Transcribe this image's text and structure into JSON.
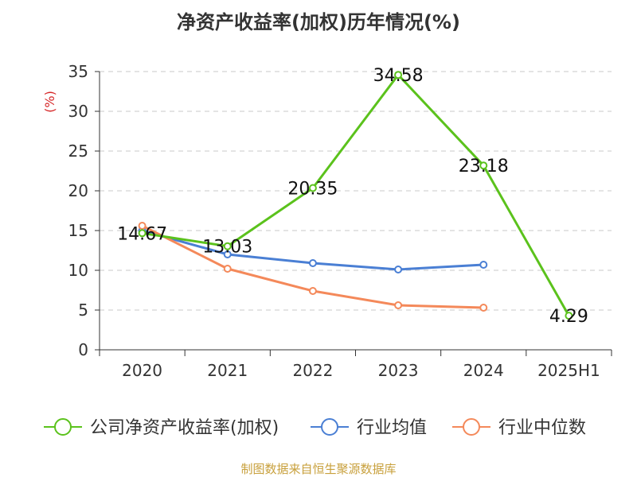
{
  "chart_data": {
    "type": "line",
    "title": "净资产收益率(加权)历年情况(%)",
    "ylabel": "(%)",
    "categories": [
      "2020",
      "2021",
      "2022",
      "2023",
      "2024",
      "2025H1"
    ],
    "ylim": [
      0,
      35
    ],
    "yticks": [
      0,
      5,
      10,
      15,
      20,
      25,
      30,
      35
    ],
    "grid": true,
    "legend_position": "bottom",
    "series": [
      {
        "name": "公司净资产收益率(加权)",
        "color": "#5bc21c",
        "values": [
          14.67,
          13.03,
          20.35,
          34.58,
          23.18,
          4.29
        ],
        "labels": [
          "14.67",
          "13.03",
          "20.35",
          "34.58",
          "23.18",
          "4.29"
        ]
      },
      {
        "name": "行业均值",
        "color": "#4a7fd4",
        "values": [
          15.0,
          12.0,
          10.9,
          10.1,
          10.7,
          null
        ]
      },
      {
        "name": "行业中位数",
        "color": "#f4895a",
        "values": [
          15.6,
          10.2,
          7.4,
          5.6,
          5.3,
          null
        ]
      }
    ]
  },
  "footer": {
    "source": "制图数据来自恒生聚源数据库"
  }
}
